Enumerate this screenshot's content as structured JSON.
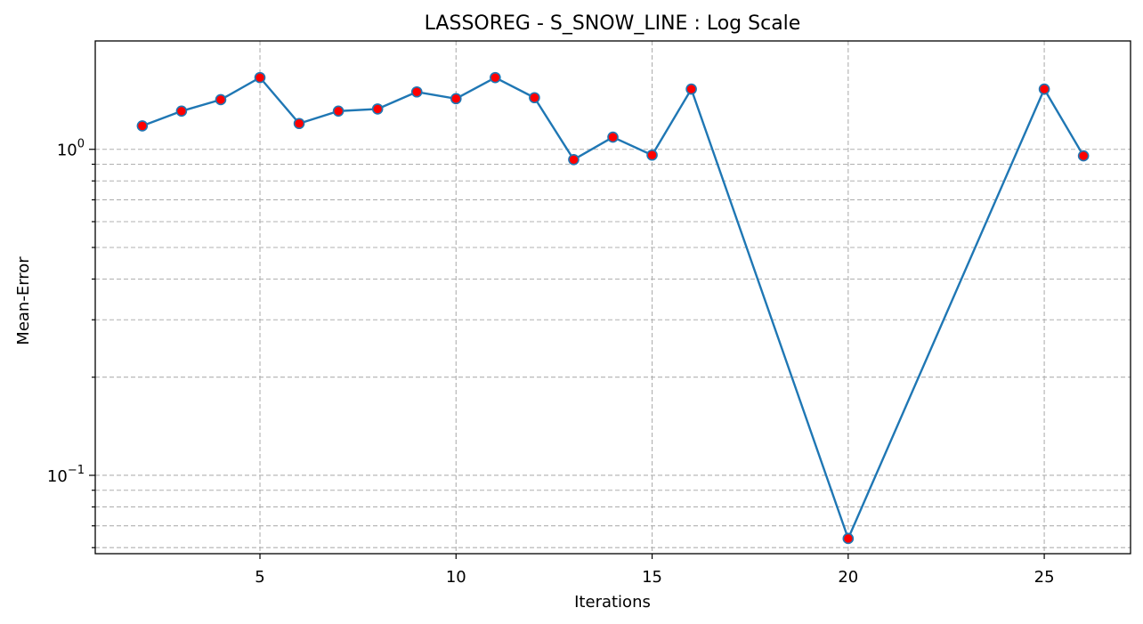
{
  "chart_data": {
    "type": "line",
    "title": "LASSOREG - S_SNOW_LINE : Log Scale",
    "xlabel": "Iterations",
    "ylabel": "Mean-Error",
    "yscale": "log",
    "grid": true,
    "xlim": [
      0.8,
      27.2
    ],
    "ylim": [
      0.0575,
      2.15
    ],
    "x_ticks": [
      5,
      10,
      15,
      20,
      25
    ],
    "y_major_ticks": [
      {
        "value": 0.1,
        "base": "10",
        "exp": "−1"
      },
      {
        "value": 1,
        "base": "10",
        "exp": "0"
      }
    ],
    "y_minor_ticks": [
      0.06,
      0.07,
      0.08,
      0.09,
      0.2,
      0.3,
      0.4,
      0.5,
      0.6,
      0.7,
      0.8,
      0.9
    ],
    "colors": {
      "line": "#1f77b4",
      "marker_fill": "#ff0000",
      "grid": "#b0b0b0"
    },
    "series": [
      {
        "x": [
          2,
          3,
          4,
          5,
          6,
          7,
          8,
          9,
          10,
          11,
          12,
          13,
          14,
          15,
          16,
          20,
          25,
          26
        ],
        "y": [
          1.18,
          1.31,
          1.42,
          1.66,
          1.2,
          1.31,
          1.33,
          1.5,
          1.43,
          1.66,
          1.44,
          0.93,
          1.09,
          0.96,
          1.53,
          0.064,
          1.53,
          0.955
        ]
      }
    ]
  }
}
